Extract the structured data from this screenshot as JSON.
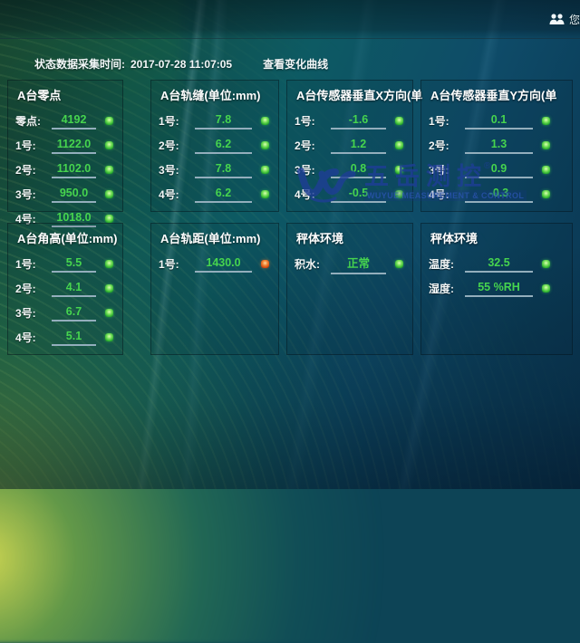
{
  "topbar": {
    "user_greeting": "您好"
  },
  "statusbar": {
    "label": "状态数据采集时间:",
    "timestamp": "2017-07-28 11:07:05",
    "view_curve_button": "查看变化曲线"
  },
  "watermark": {
    "name_cn": "五岳测控",
    "reg": "®",
    "name_en": "WUYUE MEASUREMENT & CONTROL"
  },
  "colors": {
    "value_green": "#46d44e",
    "led_green": "#2fb232",
    "led_red": "#cc4410",
    "field_underline": "#93aebc",
    "watermark_blue": "#1e3e96"
  },
  "panels": [
    {
      "title": "A台零点",
      "rows": [
        {
          "label": "零点:",
          "value": "4192",
          "led": "green"
        },
        {
          "label": "1号:",
          "value": "1122.0",
          "led": "green"
        },
        {
          "label": "2号:",
          "value": "1102.0",
          "led": "green"
        },
        {
          "label": "3号:",
          "value": "950.0",
          "led": "green"
        },
        {
          "label": "4号:",
          "value": "1018.0",
          "led": "green"
        }
      ]
    },
    {
      "title": "A台轨缝(单位:mm)",
      "rows": [
        {
          "label": "1号:",
          "value": "7.8",
          "led": "green"
        },
        {
          "label": "2号:",
          "value": "6.2",
          "led": "green"
        },
        {
          "label": "3号:",
          "value": "7.8",
          "led": "green"
        },
        {
          "label": "4号:",
          "value": "6.2",
          "led": "green"
        }
      ]
    },
    {
      "title": "A台传感器垂直X方向(单",
      "rows": [
        {
          "label": "1号:",
          "value": "-1.6",
          "led": "green"
        },
        {
          "label": "2号:",
          "value": "1.2",
          "led": "green"
        },
        {
          "label": "3号:",
          "value": "0.8",
          "led": "green"
        },
        {
          "label": "4号:",
          "value": "-0.5",
          "led": "green"
        }
      ]
    },
    {
      "title": "A台传感器垂直Y方向(单",
      "rows": [
        {
          "label": "1号:",
          "value": "0.1",
          "led": "green"
        },
        {
          "label": "2号:",
          "value": "1.3",
          "led": "green"
        },
        {
          "label": "3号:",
          "value": "0.9",
          "led": "green"
        },
        {
          "label": "4号:",
          "value": "-0.3",
          "led": "green"
        }
      ]
    },
    {
      "title": "A台角高(单位:mm)",
      "rows": [
        {
          "label": "1号:",
          "value": "5.5",
          "led": "green"
        },
        {
          "label": "2号:",
          "value": "4.1",
          "led": "green"
        },
        {
          "label": "3号:",
          "value": "6.7",
          "led": "green"
        },
        {
          "label": "4号:",
          "value": "5.1",
          "led": "green"
        }
      ]
    },
    {
      "title": "A台轨距(单位:mm)",
      "rows": [
        {
          "label": "1号:",
          "value": "1430.0",
          "led": "red"
        }
      ]
    },
    {
      "title": "秤体环境",
      "rows": [
        {
          "label": "积水:",
          "value": "正常",
          "led": "green"
        }
      ]
    },
    {
      "title": "秤体环境",
      "rows": [
        {
          "label": "温度:",
          "value": "32.5",
          "led": "green"
        },
        {
          "label": "湿度:",
          "value": "55 %RH",
          "led": "green"
        }
      ]
    }
  ]
}
